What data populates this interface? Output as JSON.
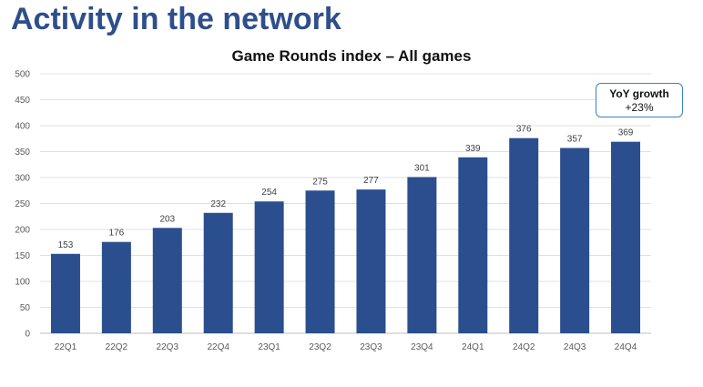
{
  "page": {
    "title": "Activity in the network"
  },
  "callout": {
    "title": "YoY growth",
    "value": "+23%"
  },
  "chart_data": {
    "type": "bar",
    "title": "Game Rounds index – All games",
    "categories": [
      "22Q1",
      "22Q2",
      "22Q3",
      "22Q4",
      "23Q1",
      "23Q2",
      "23Q3",
      "23Q4",
      "24Q1",
      "24Q2",
      "24Q3",
      "24Q4"
    ],
    "values": [
      153,
      176,
      203,
      232,
      254,
      275,
      277,
      301,
      339,
      376,
      357,
      369
    ],
    "xlabel": "",
    "ylabel": "",
    "ylim": [
      0,
      500
    ],
    "yticks": [
      0,
      50,
      100,
      150,
      200,
      250,
      300,
      350,
      400,
      450,
      500
    ],
    "grid": true,
    "legend": "none",
    "bar_color": "#2b4f8e",
    "grid_color": "#e0e0e0",
    "text_color": "#595959"
  }
}
